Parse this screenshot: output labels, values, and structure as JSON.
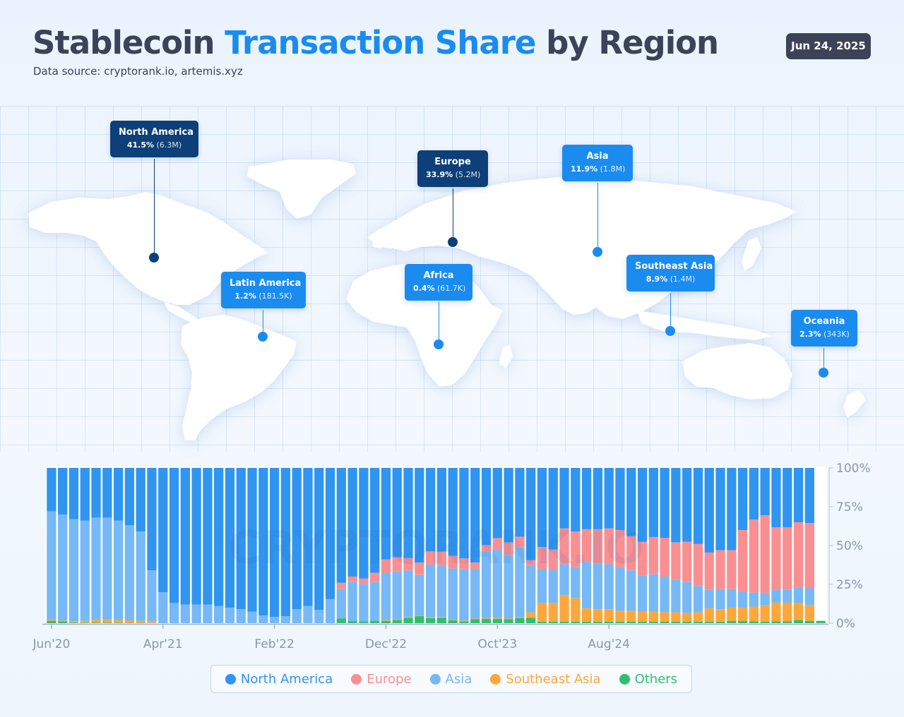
{
  "header": {
    "title_part1": "Stablecoin ",
    "title_accent": "Transaction Share",
    "title_part2": " by Region",
    "subtitle": "Data source: cryptorank.io, artemis.xyz",
    "date": "Jun 24, 2025"
  },
  "colors": {
    "north_america": "#2f95f1",
    "europe": "#fa8f91",
    "asia": "#76b9f6",
    "southeast_asia": "#ffa73b",
    "others": "#2fbf71",
    "dark_label": "#0d3f78",
    "blue_label": "#1a8cf0"
  },
  "map": {
    "regions": [
      {
        "name": "North America",
        "percent": "41.5%",
        "count": "(6.3M)"
      },
      {
        "name": "Europe",
        "percent": "33.9%",
        "count": "(5.2M)"
      },
      {
        "name": "Asia",
        "percent": "11.9%",
        "count": "(1.8M)"
      },
      {
        "name": "Latin America",
        "percent": "1.2%",
        "count": "(181.5K)"
      },
      {
        "name": "Africa",
        "percent": "0.4%",
        "count": "(61.7K)"
      },
      {
        "name": "Southeast Asia",
        "percent": "8.9%",
        "count": "(1.4M)"
      },
      {
        "name": "Oceania",
        "percent": "2.3%",
        "count": "(343K)"
      }
    ]
  },
  "chart_data": {
    "type": "bar",
    "stacked": true,
    "normalized": true,
    "watermark": "CRYPTORANK.IO",
    "x_tick_labels": [
      "Jun'20",
      "Apr'21",
      "Feb'22",
      "Dec'22",
      "Oct'23",
      "Aug'24"
    ],
    "x_tick_indices": [
      0,
      10,
      20,
      30,
      40,
      50
    ],
    "ylim": [
      0,
      100
    ],
    "y_ticks": [
      0,
      25,
      50,
      75,
      100
    ],
    "y_tick_labels": [
      "0%",
      "25%",
      "50%",
      "75%",
      "100%"
    ],
    "grid": false,
    "legend_position": "bottom",
    "series": [
      {
        "name": "Others",
        "color_key": "others",
        "values": [
          1.5,
          1.2,
          0.4,
          0.3,
          0.4,
          0.4,
          0.3,
          0.2,
          0.2,
          0.1,
          0,
          0,
          0,
          0,
          0,
          0,
          0,
          0,
          0,
          0,
          0,
          0,
          0,
          0,
          0,
          0,
          3,
          1.5,
          1.2,
          1.5,
          1.5,
          2,
          3.5,
          4.5,
          3.2,
          3.5,
          1.8,
          1.2,
          2.5,
          2.8,
          2.8,
          2.5,
          3.2,
          3.5,
          1,
          1,
          1,
          1,
          1,
          1,
          1,
          1,
          1,
          1,
          1,
          1,
          1,
          1,
          1,
          1,
          1,
          1.5,
          1.5,
          1.2,
          1,
          1.2,
          1.2,
          2,
          1.5,
          1.5
        ]
      },
      {
        "name": "Southeast Asia",
        "color_key": "southeast_asia",
        "values": [
          1,
          0.5,
          0.6,
          1.2,
          1.8,
          1.8,
          1.7,
          1.6,
          1.3,
          1,
          0,
          0,
          0,
          0,
          0,
          0,
          0,
          0,
          0,
          0,
          0,
          0,
          0,
          0,
          0,
          0,
          0,
          0,
          0,
          0,
          0.5,
          0.5,
          0.5,
          0.5,
          0.5,
          0.5,
          0.5,
          0.5,
          0.5,
          0.5,
          0.5,
          0.5,
          0.5,
          3.5,
          12,
          12,
          17,
          15,
          8.5,
          8,
          8,
          7,
          7,
          6.5,
          6.5,
          6,
          6,
          5.5,
          6,
          8.5,
          8,
          8.5,
          8.5,
          9.5,
          10.5,
          12,
          12,
          11,
          10
        ]
      },
      {
        "name": "Asia",
        "color_key": "asia",
        "values": [
          69.5,
          68.3,
          66,
          64.5,
          65.8,
          65.8,
          64,
          61.2,
          57.5,
          32.9,
          20,
          13,
          12,
          12,
          12,
          11,
          10,
          9,
          7.5,
          5,
          4,
          4.5,
          9,
          11,
          8.5,
          15.5,
          19,
          25,
          24,
          25,
          30.5,
          31,
          30,
          26,
          34,
          33,
          33,
          33,
          32,
          43,
          44,
          41,
          45,
          30,
          22,
          21.5,
          20,
          20,
          30,
          29.5,
          29,
          28,
          26,
          23,
          24,
          23,
          21,
          20,
          17,
          12,
          13,
          12,
          10,
          9,
          8,
          8.5,
          8.5,
          10,
          11
        ]
      },
      {
        "name": "Europe",
        "color_key": "europe",
        "values": [
          0,
          0,
          0,
          0,
          0,
          0,
          0,
          0,
          0,
          0,
          0,
          0,
          0,
          0,
          0,
          0,
          0,
          0,
          0,
          0,
          0,
          0,
          0,
          0,
          0,
          0,
          4,
          3.5,
          3.5,
          6,
          8.5,
          9,
          8,
          8,
          8.5,
          9,
          8,
          7,
          4,
          4,
          7.5,
          8,
          7,
          3.5,
          14,
          13,
          23,
          23,
          21,
          22,
          23,
          24,
          22,
          22,
          24,
          25,
          24,
          26,
          27,
          24,
          25,
          25,
          40,
          47,
          50,
          40,
          40,
          42,
          42
        ]
      },
      {
        "name": "North America",
        "color_key": "north_america",
        "values": [
          28,
          30,
          33,
          34,
          32,
          32,
          34,
          37,
          41,
          66,
          80,
          87,
          88,
          88,
          88,
          89,
          90,
          91,
          92.5,
          95,
          96,
          95.5,
          91,
          89,
          91.5,
          84.5,
          74,
          70,
          71.3,
          67.5,
          59,
          57.5,
          58,
          61,
          53.8,
          54,
          56.7,
          58.3,
          61,
          49.7,
          45.2,
          48,
          44.3,
          59.5,
          51,
          52.5,
          39,
          41,
          39.5,
          39.5,
          39,
          40,
          44,
          47.5,
          44.5,
          45,
          48,
          47.5,
          49,
          54.5,
          53,
          53,
          40,
          33.3,
          30.5,
          38.3,
          38.3,
          35,
          35.5
        ]
      }
    ]
  },
  "legend": [
    {
      "label": "North America",
      "color_key": "north_america"
    },
    {
      "label": "Europe",
      "color_key": "europe"
    },
    {
      "label": "Asia",
      "color_key": "asia"
    },
    {
      "label": "Southeast Asia",
      "color_key": "southeast_asia"
    },
    {
      "label": "Others",
      "color_key": "others"
    }
  ]
}
